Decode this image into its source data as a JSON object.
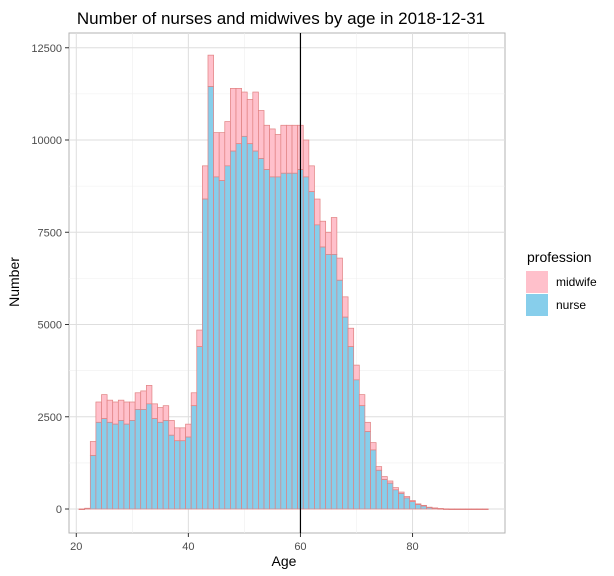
{
  "chart_data": {
    "type": "bar",
    "title": "Number of nurses and midwives by age in 2018-12-31",
    "xlabel": "Age",
    "ylabel": "Number",
    "xlim": [
      18.7,
      96.5
    ],
    "ylim": [
      -650,
      12900
    ],
    "xticks": [
      20,
      40,
      60,
      80
    ],
    "yticks": [
      0,
      2500,
      5000,
      7500,
      10000,
      12500
    ],
    "grid": true,
    "stacked": true,
    "vline_x": 60,
    "legend": {
      "title": "profession",
      "position": "right",
      "entries": [
        {
          "name": "midwife",
          "color": "#ffc0cb"
        },
        {
          "name": "nurse",
          "color": "#87ceeb"
        }
      ]
    },
    "colors": {
      "midwife": "#ffc0cb",
      "nurse": "#87ceeb",
      "outline": "#e08080",
      "vline": "#000000"
    },
    "categories": [
      21,
      22,
      23,
      24,
      25,
      26,
      27,
      28,
      29,
      30,
      31,
      32,
      33,
      34,
      35,
      36,
      37,
      38,
      39,
      40,
      41,
      42,
      43,
      44,
      45,
      46,
      47,
      48,
      49,
      50,
      51,
      52,
      53,
      54,
      55,
      56,
      57,
      58,
      59,
      60,
      61,
      62,
      63,
      64,
      65,
      66,
      67,
      68,
      69,
      70,
      71,
      72,
      73,
      74,
      75,
      76,
      77,
      78,
      79,
      80,
      81,
      82,
      83,
      84,
      85,
      86,
      87,
      88,
      89,
      90,
      91,
      92,
      93
    ],
    "series": [
      {
        "name": "nurse",
        "values": [
          0,
          20,
          1450,
          2350,
          2450,
          2350,
          2300,
          2400,
          2300,
          2400,
          2700,
          2700,
          2850,
          2450,
          2350,
          2400,
          2000,
          1850,
          1850,
          1950,
          2800,
          4400,
          8400,
          11450,
          9000,
          8900,
          9300,
          9700,
          9900,
          10100,
          9900,
          9700,
          9500,
          9200,
          9000,
          9000,
          9100,
          9100,
          9100,
          9200,
          9000,
          8600,
          7700,
          7100,
          6900,
          6900,
          6200,
          5200,
          4400,
          3500,
          2800,
          2100,
          1600,
          1050,
          800,
          700,
          520,
          420,
          300,
          200,
          120,
          80,
          40,
          20,
          10,
          5,
          0,
          0,
          0,
          0,
          0,
          0,
          0
        ]
      },
      {
        "name": "midwife",
        "values": [
          0,
          0,
          380,
          550,
          650,
          600,
          600,
          550,
          600,
          500,
          450,
          500,
          500,
          400,
          400,
          400,
          400,
          350,
          350,
          350,
          350,
          450,
          900,
          850,
          1200,
          1300,
          1200,
          1700,
          1500,
          1200,
          1200,
          1600,
          1300,
          1200,
          1300,
          1150,
          1300,
          1300,
          1300,
          1200,
          1000,
          700,
          700,
          700,
          600,
          1000,
          600,
          550,
          500,
          400,
          300,
          250,
          200,
          100,
          80,
          60,
          60,
          40,
          40,
          30,
          20,
          20,
          10,
          10,
          5,
          0,
          0,
          0,
          0,
          0,
          0,
          0,
          0
        ]
      }
    ]
  }
}
